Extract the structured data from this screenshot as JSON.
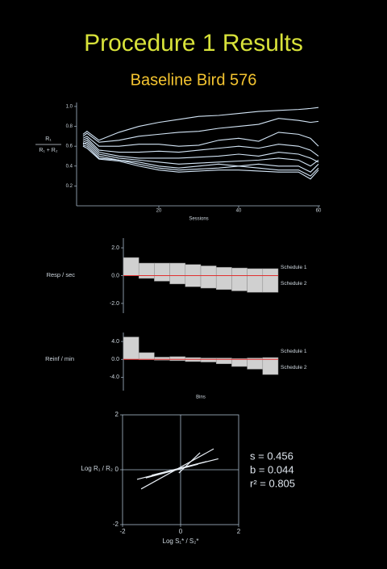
{
  "header": {
    "title": "Procedure 1 Results",
    "subtitle": "Baseline Bird 576",
    "title_color": "#d8e23a",
    "subtitle_color": "#f4c430"
  },
  "chart_data": [
    {
      "type": "line",
      "ylabel_numerator": "R₁",
      "ylabel_denominator": "R₁ + R₂",
      "xlabel": "Sessions",
      "color": "#d4e6f7",
      "x": [
        1,
        2,
        5,
        10,
        15,
        20,
        25,
        30,
        35,
        40,
        45,
        50,
        55,
        58,
        60
      ],
      "series": [
        {
          "values": [
            0.72,
            0.75,
            0.66,
            0.74,
            0.8,
            0.84,
            0.87,
            0.9,
            0.91,
            0.93,
            0.95,
            0.96,
            0.97,
            0.98,
            0.99
          ]
        },
        {
          "values": [
            0.7,
            0.73,
            0.64,
            0.66,
            0.7,
            0.72,
            0.74,
            0.75,
            0.78,
            0.8,
            0.82,
            0.88,
            0.86,
            0.84,
            0.85
          ]
        },
        {
          "values": [
            0.68,
            0.7,
            0.6,
            0.6,
            0.62,
            0.62,
            0.6,
            0.61,
            0.66,
            0.68,
            0.65,
            0.74,
            0.72,
            0.68,
            0.6
          ]
        },
        {
          "values": [
            0.66,
            0.68,
            0.56,
            0.54,
            0.54,
            0.55,
            0.54,
            0.56,
            0.58,
            0.6,
            0.58,
            0.62,
            0.6,
            0.56,
            0.5
          ]
        },
        {
          "values": [
            0.64,
            0.66,
            0.54,
            0.5,
            0.48,
            0.48,
            0.48,
            0.49,
            0.5,
            0.52,
            0.5,
            0.54,
            0.52,
            0.48,
            0.44
          ]
        },
        {
          "values": [
            0.62,
            0.64,
            0.52,
            0.48,
            0.46,
            0.44,
            0.42,
            0.43,
            0.44,
            0.45,
            0.46,
            0.48,
            0.46,
            0.4,
            0.46
          ]
        },
        {
          "values": [
            0.63,
            0.62,
            0.5,
            0.46,
            0.44,
            0.4,
            0.38,
            0.4,
            0.42,
            0.4,
            0.42,
            0.4,
            0.4,
            0.34,
            0.42
          ]
        },
        {
          "values": [
            0.61,
            0.6,
            0.48,
            0.46,
            0.42,
            0.38,
            0.36,
            0.37,
            0.38,
            0.4,
            0.38,
            0.36,
            0.36,
            0.3,
            0.38
          ]
        },
        {
          "values": [
            0.6,
            0.58,
            0.47,
            0.45,
            0.4,
            0.36,
            0.34,
            0.35,
            0.36,
            0.36,
            0.35,
            0.34,
            0.34,
            0.27,
            0.36
          ]
        }
      ],
      "xlim": [
        0,
        60
      ],
      "xticks": [
        20,
        40,
        60
      ],
      "ylim": [
        0,
        1.04
      ],
      "yticks": [
        0.2,
        0.4,
        0.6,
        0.8,
        {
          "value": 1,
          "label": "1.0"
        }
      ]
    },
    {
      "type": "bar",
      "ylabel": "Resp / sec",
      "color": "#d0d0d0",
      "zero_line_color": "#e03030",
      "legend": "right",
      "categories": [
        null,
        null,
        null,
        null,
        null,
        null,
        null,
        null,
        null,
        null
      ],
      "series": [
        {
          "name": "Schedule 1",
          "values": [
            1.3,
            0.9,
            0.9,
            0.9,
            0.8,
            0.7,
            0.6,
            0.55,
            0.5,
            0.5
          ]
        },
        {
          "name": "Schedule 2",
          "values": [
            0,
            -0.2,
            -0.4,
            -0.6,
            -0.8,
            -0.9,
            -1.0,
            -1.1,
            -1.2,
            -1.2
          ]
        }
      ],
      "ylim": [
        -2.7,
        2.7
      ],
      "yticks": [
        {
          "value": 2,
          "label": "2.0"
        },
        {
          "value": 0,
          "label": "0.0"
        },
        {
          "value": -2,
          "label": "-2.0"
        }
      ]
    },
    {
      "type": "bar",
      "ylabel": "Reinf / min",
      "xlabel": "Bins",
      "color": "#d0d0d0",
      "zero_line_color": "#e03030",
      "legend": "right",
      "categories": [
        null,
        null,
        null,
        null,
        null,
        null,
        null,
        null,
        null,
        null
      ],
      "series": [
        {
          "name": "Schedule 1",
          "values": [
            5.0,
            1.5,
            0.5,
            0.6,
            0.4,
            0.3,
            0.3,
            0.2,
            0.3,
            0.4
          ]
        },
        {
          "name": "Schedule 2",
          "values": [
            0,
            -0.1,
            -0.2,
            -0.3,
            -0.5,
            -0.6,
            -1.0,
            -1.6,
            -2.2,
            -3.4
          ]
        }
      ],
      "ylim": [
        -7,
        6
      ],
      "yticks": [
        {
          "value": 4,
          "label": "4.0"
        },
        {
          "value": 0,
          "label": "0.0"
        },
        {
          "value": -4,
          "label": "-4.0"
        }
      ]
    },
    {
      "type": "line",
      "ylabel": "Log R₁ / R₂",
      "xlabel": "Log  S₁* / S₂*",
      "color": "#e8eef5",
      "frame": true,
      "axes_through_origin": true,
      "series": [
        {
          "x": [
            -1.36,
            1.14
          ],
          "values": [
            -0.7,
            0.76
          ]
        },
        {
          "x": [
            -1.5,
            1.3
          ],
          "values": [
            -0.35,
            0.4
          ]
        },
        {
          "x": [
            -1.2,
            0.6
          ],
          "values": [
            -0.3,
            0.2
          ]
        },
        {
          "x": [
            -0.06,
            0.67
          ],
          "values": [
            -0.12,
            0.62
          ]
        },
        {
          "x": [
            -1.0,
            0.9
          ],
          "values": [
            -0.2,
            0.3
          ]
        }
      ],
      "xlim": [
        -2,
        2
      ],
      "xticks": [
        -2,
        0,
        2
      ],
      "ylim": [
        -2,
        2
      ],
      "yticks": [
        2,
        0,
        -2
      ],
      "annotations": [
        "s   =  0.456",
        "b   =  0.044",
        "r²  =  0.805"
      ]
    }
  ]
}
